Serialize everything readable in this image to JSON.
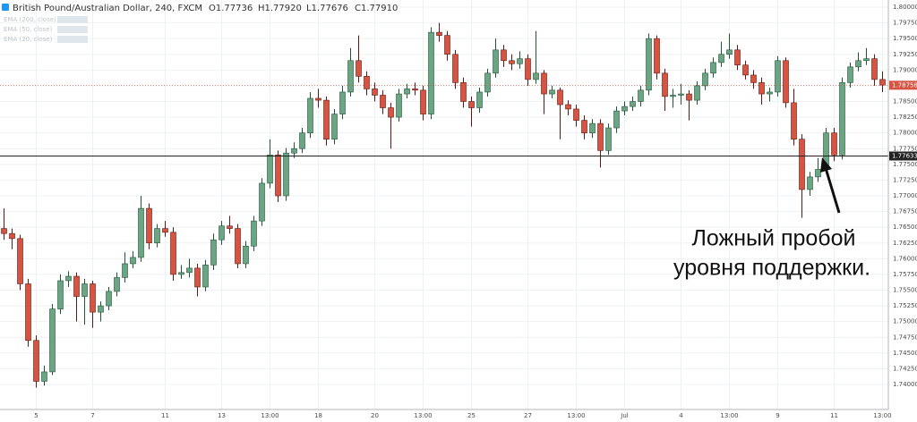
{
  "chart_data": {
    "type": "candlestick",
    "title": "British Pound/Australian Dollar, 240, FXCM",
    "ohlc_header": [
      "O1.77736",
      "H1.77920",
      "L1.77676",
      "C1.77910"
    ],
    "indicators": [
      "EMA (200, close)",
      "EMA (50, close)",
      "EMA (20, close)"
    ],
    "annotation": [
      "Ложный пробой",
      "уровня поддержки."
    ],
    "up_color": "#6ba583",
    "down_color": "#d75442",
    "grid": true,
    "ylim": [
      1.74,
      1.8
    ],
    "yticks": [
      {
        "value": 1.8,
        "label": "1.80000"
      },
      {
        "value": 1.7975,
        "label": "1.79750"
      },
      {
        "value": 1.795,
        "label": "1.79500"
      },
      {
        "value": 1.7925,
        "label": "1.79250"
      },
      {
        "value": 1.79,
        "label": "1.79000"
      },
      {
        "value": 1.7875,
        "label": "1.78750"
      },
      {
        "value": 1.785,
        "label": "1.78500"
      },
      {
        "value": 1.7825,
        "label": "1.78250"
      },
      {
        "value": 1.78,
        "label": "1.78000"
      },
      {
        "value": 1.7775,
        "label": "1.77750"
      },
      {
        "value": 1.775,
        "label": "1.77500"
      },
      {
        "value": 1.7725,
        "label": "1.77250"
      },
      {
        "value": 1.77,
        "label": "1.77000"
      },
      {
        "value": 1.7675,
        "label": "1.76750"
      },
      {
        "value": 1.765,
        "label": "1.76500"
      },
      {
        "value": 1.7625,
        "label": "1.76250"
      },
      {
        "value": 1.76,
        "label": "1.76000"
      },
      {
        "value": 1.7575,
        "label": "1.75750"
      },
      {
        "value": 1.755,
        "label": "1.75500"
      },
      {
        "value": 1.7525,
        "label": "1.75250"
      },
      {
        "value": 1.75,
        "label": "1.75000"
      },
      {
        "value": 1.7475,
        "label": "1.74750"
      },
      {
        "value": 1.745,
        "label": "1.74500"
      },
      {
        "value": 1.7425,
        "label": "1.74250"
      },
      {
        "value": 1.74,
        "label": "1.74000"
      }
    ],
    "last_price": {
      "value": 1.78758,
      "label": "1.78758"
    },
    "level": {
      "value": 1.77633,
      "label": "1.77633"
    },
    "categories": [
      null,
      null,
      null,
      null,
      "5",
      null,
      null,
      null,
      null,
      null,
      null,
      "7",
      null,
      null,
      null,
      null,
      null,
      null,
      null,
      null,
      "11",
      null,
      null,
      null,
      null,
      null,
      null,
      "13",
      null,
      null,
      null,
      null,
      null,
      "13:00",
      null,
      null,
      null,
      null,
      null,
      "18",
      null,
      null,
      null,
      null,
      null,
      null,
      "20",
      null,
      null,
      null,
      null,
      null,
      "13:00",
      null,
      null,
      null,
      null,
      null,
      "25",
      null,
      null,
      null,
      null,
      null,
      null,
      "27",
      null,
      null,
      null,
      null,
      null,
      "13:00",
      null,
      null,
      null,
      null,
      null,
      "Jul",
      null,
      null,
      null,
      null,
      null,
      null,
      "4",
      null,
      null,
      null,
      null,
      null,
      "13:00",
      null,
      null,
      null,
      null,
      null,
      "9",
      null,
      null,
      null,
      null,
      null,
      null,
      "11",
      null,
      null,
      null,
      null,
      null,
      "13:00"
    ],
    "candles": [
      [
        1.7648,
        1.768,
        1.763,
        1.764
      ],
      [
        1.764,
        1.7648,
        1.7615,
        1.7632
      ],
      [
        1.7632,
        1.7638,
        1.755,
        1.756
      ],
      [
        1.756,
        1.7568,
        1.746,
        1.747
      ],
      [
        1.747,
        1.7478,
        1.7395,
        1.7405
      ],
      [
        1.7405,
        1.743,
        1.7398,
        1.742
      ],
      [
        1.742,
        1.7528,
        1.7415,
        1.752
      ],
      [
        1.752,
        1.7575,
        1.7512,
        1.7565
      ],
      [
        1.7565,
        1.758,
        1.7555,
        1.7572
      ],
      [
        1.7572,
        1.7578,
        1.75,
        1.754
      ],
      [
        1.754,
        1.7568,
        1.7495,
        1.756
      ],
      [
        1.756,
        1.7565,
        1.749,
        1.7515
      ],
      [
        1.7515,
        1.7532,
        1.75,
        1.7525
      ],
      [
        1.7525,
        1.7555,
        1.7518,
        1.7548
      ],
      [
        1.7548,
        1.7578,
        1.754,
        1.757
      ],
      [
        1.757,
        1.761,
        1.7562,
        1.7592
      ],
      [
        1.7592,
        1.7612,
        1.7585,
        1.7602
      ],
      [
        1.7602,
        1.77,
        1.7595,
        1.768
      ],
      [
        1.768,
        1.7688,
        1.7615,
        1.7625
      ],
      [
        1.7625,
        1.7655,
        1.7618,
        1.7648
      ],
      [
        1.7648,
        1.766,
        1.7635,
        1.7642
      ],
      [
        1.7642,
        1.765,
        1.7565,
        1.7575
      ],
      [
        1.7575,
        1.759,
        1.7568,
        1.7578
      ],
      [
        1.7578,
        1.76,
        1.757,
        1.7585
      ],
      [
        1.7585,
        1.7592,
        1.754,
        1.7555
      ],
      [
        1.7555,
        1.7598,
        1.7548,
        1.759
      ],
      [
        1.759,
        1.764,
        1.7582,
        1.763
      ],
      [
        1.763,
        1.766,
        1.7622,
        1.7652
      ],
      [
        1.7652,
        1.7668,
        1.764,
        1.7648
      ],
      [
        1.7648,
        1.7655,
        1.7585,
        1.7592
      ],
      [
        1.7592,
        1.7628,
        1.7585,
        1.762
      ],
      [
        1.762,
        1.7668,
        1.7612,
        1.766
      ],
      [
        1.766,
        1.7728,
        1.7652,
        1.772
      ],
      [
        1.772,
        1.779,
        1.7712,
        1.7765
      ],
      [
        1.7765,
        1.7772,
        1.769,
        1.77
      ],
      [
        1.77,
        1.7776,
        1.7692,
        1.7768
      ],
      [
        1.7768,
        1.7785,
        1.776,
        1.7775
      ],
      [
        1.7775,
        1.7808,
        1.7768,
        1.78
      ],
      [
        1.78,
        1.7865,
        1.7792,
        1.7855
      ],
      [
        1.7855,
        1.787,
        1.784,
        1.7852
      ],
      [
        1.7852,
        1.7858,
        1.778,
        1.779
      ],
      [
        1.779,
        1.7838,
        1.7782,
        1.783
      ],
      [
        1.783,
        1.7875,
        1.7822,
        1.7865
      ],
      [
        1.7865,
        1.7935,
        1.7858,
        1.7915
      ],
      [
        1.7915,
        1.7955,
        1.788,
        1.789
      ],
      [
        1.789,
        1.7898,
        1.786,
        1.787
      ],
      [
        1.787,
        1.788,
        1.785,
        1.786
      ],
      [
        1.786,
        1.7868,
        1.783,
        1.784
      ],
      [
        1.784,
        1.7848,
        1.7775,
        1.7825
      ],
      [
        1.7825,
        1.787,
        1.7818,
        1.7862
      ],
      [
        1.7862,
        1.7878,
        1.7855,
        1.787
      ],
      [
        1.787,
        1.788,
        1.786,
        1.7868
      ],
      [
        1.7868,
        1.7875,
        1.782,
        1.783
      ],
      [
        1.783,
        1.7968,
        1.7822,
        1.796
      ],
      [
        1.796,
        1.7975,
        1.7945,
        1.7955
      ],
      [
        1.7955,
        1.7962,
        1.7915,
        1.7925
      ],
      [
        1.7925,
        1.7932,
        1.787,
        1.788
      ],
      [
        1.788,
        1.7888,
        1.784,
        1.785
      ],
      [
        1.785,
        1.7858,
        1.781,
        1.784
      ],
      [
        1.784,
        1.7872,
        1.7832,
        1.7865
      ],
      [
        1.7865,
        1.7902,
        1.7858,
        1.7895
      ],
      [
        1.7895,
        1.795,
        1.7888,
        1.7932
      ],
      [
        1.7932,
        1.794,
        1.7905,
        1.7915
      ],
      [
        1.7915,
        1.7925,
        1.79,
        1.791
      ],
      [
        1.791,
        1.793,
        1.7902,
        1.7918
      ],
      [
        1.7918,
        1.7925,
        1.7875,
        1.7885
      ],
      [
        1.7885,
        1.7962,
        1.7878,
        1.7895
      ],
      [
        1.7895,
        1.79,
        1.783,
        1.7862
      ],
      [
        1.7862,
        1.7875,
        1.7855,
        1.7868
      ],
      [
        1.7868,
        1.7872,
        1.779,
        1.7845
      ],
      [
        1.7845,
        1.7852,
        1.7828,
        1.7838
      ],
      [
        1.7838,
        1.7845,
        1.781,
        1.782
      ],
      [
        1.782,
        1.7828,
        1.779,
        1.78
      ],
      [
        1.78,
        1.7822,
        1.7792,
        1.7815
      ],
      [
        1.7815,
        1.7822,
        1.7745,
        1.7772
      ],
      [
        1.7772,
        1.7815,
        1.7765,
        1.7808
      ],
      [
        1.7808,
        1.7842,
        1.78,
        1.7835
      ],
      [
        1.7835,
        1.785,
        1.7828,
        1.7842
      ],
      [
        1.7842,
        1.7858,
        1.7835,
        1.785
      ],
      [
        1.785,
        1.7875,
        1.7842,
        1.7868
      ],
      [
        1.7868,
        1.7958,
        1.786,
        1.795
      ],
      [
        1.795,
        1.7955,
        1.7885,
        1.7895
      ],
      [
        1.7895,
        1.7902,
        1.7835,
        1.7858
      ],
      [
        1.7858,
        1.787,
        1.784,
        1.786
      ],
      [
        1.786,
        1.7878,
        1.7845,
        1.7862
      ],
      [
        1.7862,
        1.7868,
        1.782,
        1.7852
      ],
      [
        1.7852,
        1.7882,
        1.7845,
        1.7875
      ],
      [
        1.7875,
        1.7902,
        1.7868,
        1.7895
      ],
      [
        1.7895,
        1.792,
        1.7888,
        1.7912
      ],
      [
        1.7912,
        1.7945,
        1.7905,
        1.7925
      ],
      [
        1.7925,
        1.7958,
        1.7918,
        1.7932
      ],
      [
        1.7932,
        1.794,
        1.79,
        1.7908
      ],
      [
        1.7908,
        1.7915,
        1.7885,
        1.7892
      ],
      [
        1.7892,
        1.79,
        1.787,
        1.788
      ],
      [
        1.788,
        1.7888,
        1.7845,
        1.7862
      ],
      [
        1.7862,
        1.7872,
        1.785,
        1.7865
      ],
      [
        1.7865,
        1.7922,
        1.7858,
        1.7915
      ],
      [
        1.7915,
        1.792,
        1.784,
        1.7848
      ],
      [
        1.7848,
        1.787,
        1.778,
        1.779
      ],
      [
        1.779,
        1.7798,
        1.7665,
        1.771
      ],
      [
        1.771,
        1.7738,
        1.77,
        1.773
      ],
      [
        1.773,
        1.776,
        1.7722,
        1.7742
      ],
      [
        1.7742,
        1.7808,
        1.7735,
        1.78
      ],
      [
        1.78,
        1.7808,
        1.7755,
        1.7765
      ],
      [
        1.7765,
        1.7888,
        1.7758,
        1.788
      ],
      [
        1.788,
        1.7912,
        1.7872,
        1.7905
      ],
      [
        1.7905,
        1.7928,
        1.7898,
        1.7915
      ],
      [
        1.7915,
        1.7935,
        1.7908,
        1.7918
      ],
      [
        1.7918,
        1.7925,
        1.7875,
        1.7885
      ],
      [
        1.7885,
        1.7898,
        1.7865,
        1.7876
      ]
    ]
  }
}
